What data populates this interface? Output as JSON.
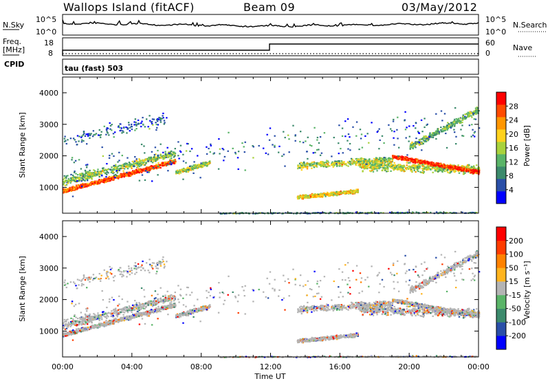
{
  "header": {
    "site": "Wallops Island (fitACF)",
    "beam": "Beam 09",
    "date": "03/May/2012"
  },
  "top_panel": {
    "left_labels": [
      "N.Sky",
      "Freq.",
      "[MHz]",
      "CPID"
    ],
    "right_labels": [
      "N.Search",
      "Nave"
    ],
    "nsky_ticks": [
      "10^5",
      "10^0"
    ],
    "nsearch_ticks": [
      "10^5",
      "10^0"
    ],
    "freq_ticks": [
      "18",
      "8"
    ],
    "nave_ticks": [
      "60",
      "0"
    ],
    "cpid_text": "tau (fast) 503"
  },
  "colors": {
    "power_scale": [
      "#0000ff",
      "#2a4fa8",
      "#3c8a6c",
      "#5ab468",
      "#a9d23c",
      "#ffd21e",
      "#ff9600",
      "#ff4b00",
      "#ff0000"
    ],
    "velocity_scale": [
      "#0000ff",
      "#2a4fa8",
      "#3c8a6c",
      "#5ab468",
      "#b4b4b4",
      "#ffb41e",
      "#ff8200",
      "#ff3c00",
      "#ff0000"
    ],
    "ground_scatter": "#b4b4b4"
  },
  "chart_data": [
    {
      "type": "heatmap",
      "name": "Power",
      "xlabel": "",
      "ylabel": "Slant Range [km]",
      "xlim": [
        "00:00",
        "24:00"
      ],
      "ylim": [
        180,
        4500
      ],
      "y_ticks": [
        "1000",
        "2000",
        "3000",
        "4000"
      ],
      "colorbar": {
        "label": "Power [dB]",
        "ticks": [
          "28",
          "24",
          "20",
          "16",
          "12",
          "8",
          "4"
        ],
        "range": [
          0,
          32
        ]
      },
      "features": [
        {
          "desc": "main echo band",
          "time_start_h": 0,
          "time_end_h": 6.5,
          "range_start_km": 900,
          "range_end_km": 1800,
          "peak_db": 30
        },
        {
          "desc": "evening band",
          "time_start_h": 19,
          "time_end_h": 24,
          "range_start_km": 2000,
          "range_end_km": 1500,
          "peak_db": 30
        },
        {
          "desc": "mid-day patch",
          "time_start_h": 13.5,
          "time_end_h": 17,
          "range_start_km": 700,
          "range_end_km": 900,
          "peak_db": 20
        }
      ]
    },
    {
      "type": "heatmap",
      "name": "Velocity",
      "xlabel": "Time UT",
      "ylabel": "Slant Range [km]",
      "xlim": [
        "00:00",
        "24:00"
      ],
      "ylim": [
        180,
        4500
      ],
      "x_ticks": [
        "00:00",
        "04:00",
        "08:00",
        "12:00",
        "16:00",
        "20:00",
        "00:00"
      ],
      "y_ticks": [
        "1000",
        "2000",
        "3000",
        "4000"
      ],
      "colorbar": {
        "label": "Velocity [m s⁻¹]",
        "ticks": [
          "200",
          "100",
          "50",
          "15",
          "-15",
          "-50",
          "-100",
          "-200"
        ],
        "range": [
          -250,
          250
        ]
      }
    }
  ]
}
